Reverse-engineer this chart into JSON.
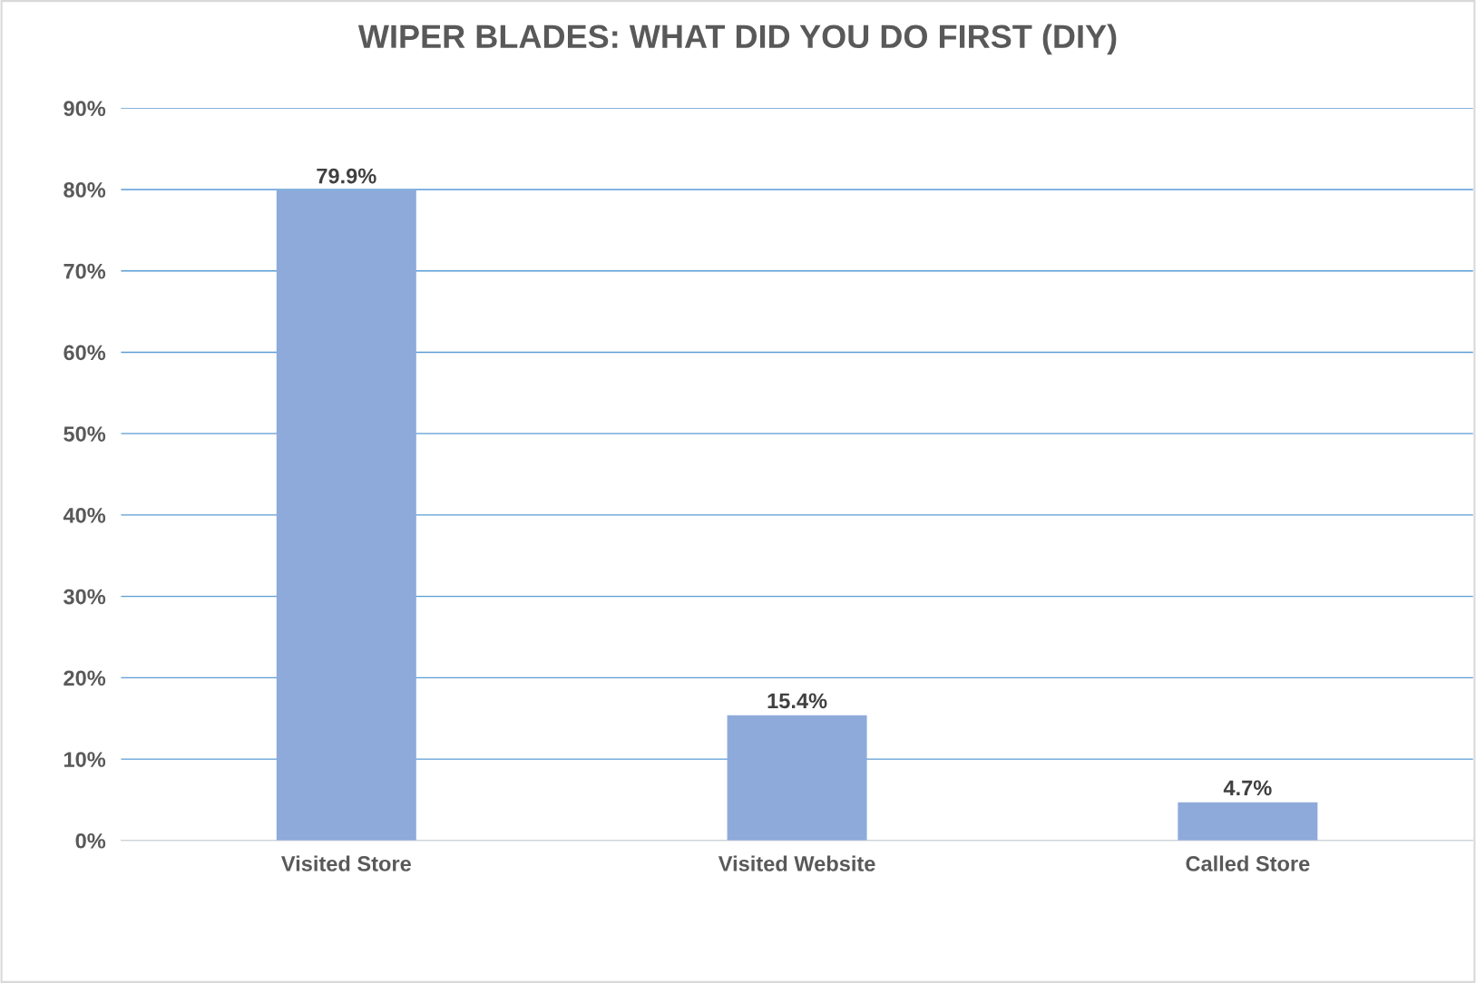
{
  "chart_data": {
    "type": "bar",
    "title": "WIPER BLADES: WHAT DID YOU DO FIRST (DIY)",
    "categories": [
      "Visited Store",
      "Visited Website",
      "Called Store"
    ],
    "values": [
      79.9,
      15.4,
      4.7
    ],
    "color": "#8eaadb",
    "value_labels": [
      "79.9%",
      "15.4%",
      "4.7%"
    ],
    "ylim": [
      0,
      90
    ],
    "yticks": [
      {
        "value": 0,
        "label": "0%"
      },
      {
        "value": 10,
        "label": "10%"
      },
      {
        "value": 20,
        "label": "20%"
      },
      {
        "value": 30,
        "label": "30%"
      },
      {
        "value": 40,
        "label": "40%"
      },
      {
        "value": 50,
        "label": "50%"
      },
      {
        "value": 60,
        "label": "60%"
      },
      {
        "value": 70,
        "label": "70%"
      },
      {
        "value": 80,
        "label": "80%"
      },
      {
        "value": 90,
        "label": "90%"
      }
    ],
    "grid": "y",
    "legend": false
  }
}
